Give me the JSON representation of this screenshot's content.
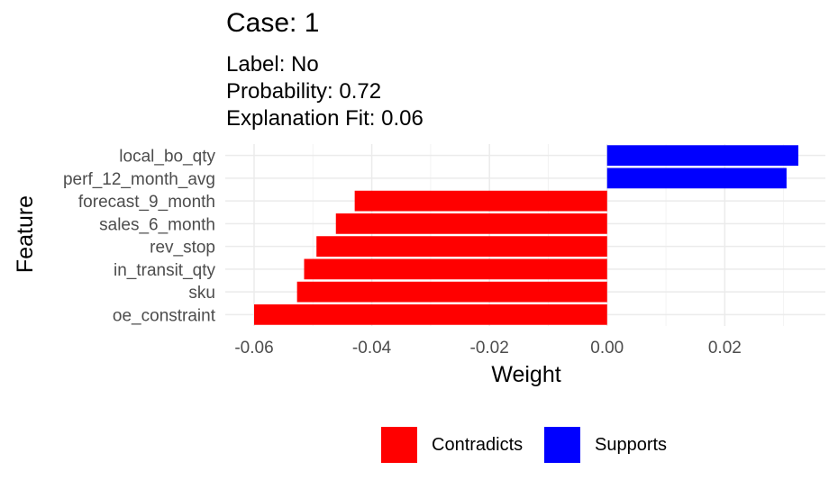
{
  "chart_data": {
    "type": "bar",
    "orientation": "horizontal",
    "title": "Case: 1",
    "subtitles": [
      "Label: No",
      "Probability: 0.72",
      "Explanation Fit: 0.06"
    ],
    "xlabel": "Weight",
    "ylabel": "Feature",
    "categories": [
      "local_bo_qty",
      "perf_12_month_avg",
      "forecast_9_month",
      "sales_6_month",
      "rev_stop",
      "in_transit_qty",
      "sku",
      "oe_constraint"
    ],
    "values": [
      0.0325,
      0.0305,
      -0.0429,
      -0.0461,
      -0.0494,
      -0.0515,
      -0.0527,
      -0.06
    ],
    "groups": [
      "Supports",
      "Supports",
      "Contradicts",
      "Contradicts",
      "Contradicts",
      "Contradicts",
      "Contradicts",
      "Contradicts"
    ],
    "xticks": [
      -0.06,
      -0.04,
      -0.02,
      0.0,
      0.02
    ],
    "xtick_labels": [
      "-0.06",
      "-0.04",
      "-0.02",
      "0.00",
      "0.02"
    ],
    "xlim": [
      -0.0649,
      0.0371
    ],
    "grid": true,
    "legend_position": "bottom",
    "legend": [
      {
        "label": "Contradicts",
        "color": "#ff0000"
      },
      {
        "label": "Supports",
        "color": "#0000ff"
      }
    ],
    "colors": {
      "Contradicts": "#ff0000",
      "Supports": "#0000ff"
    }
  }
}
